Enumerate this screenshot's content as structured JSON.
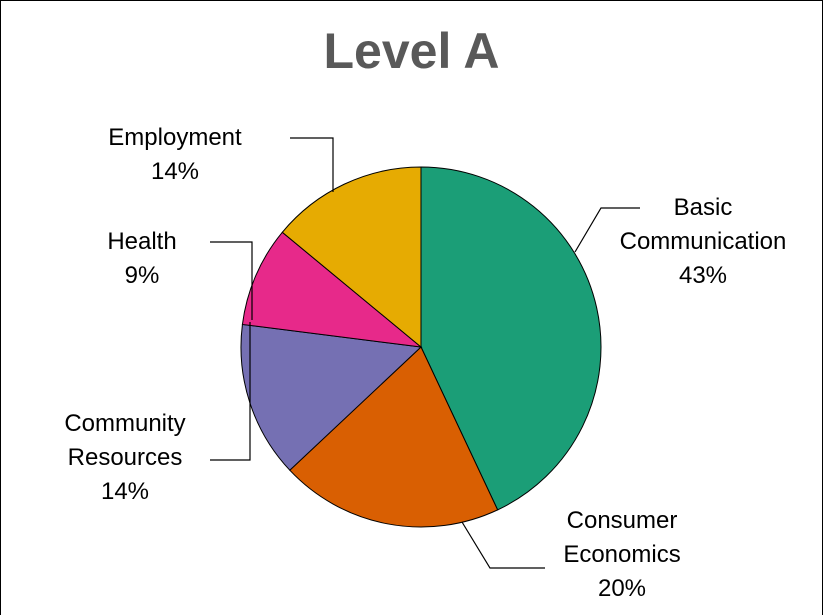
{
  "chart_data": {
    "type": "pie",
    "title": "Level A",
    "categories": [
      "Basic Communication",
      "Consumer Economics",
      "Community Resources",
      "Health",
      "Employment"
    ],
    "values": [
      43,
      20,
      14,
      9,
      14
    ],
    "value_labels": [
      "43%",
      "20%",
      "14%",
      "9%",
      "14%"
    ],
    "colors": [
      "#1b9e77",
      "#d95f02",
      "#7570b3",
      "#e7298a",
      "#e6ab02"
    ]
  }
}
